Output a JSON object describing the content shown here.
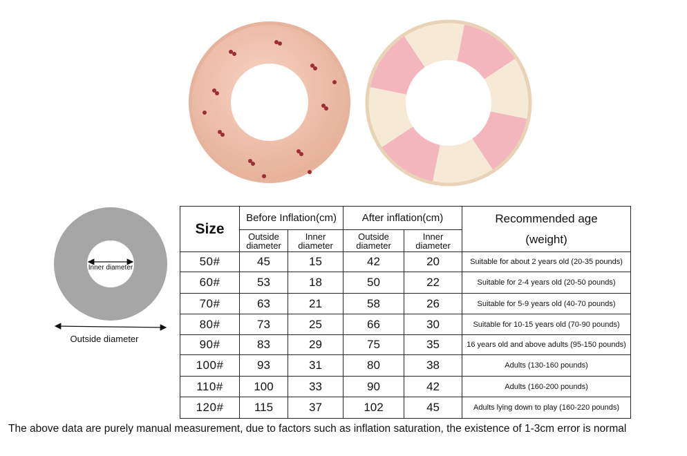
{
  "colors": {
    "peach_ring": "#efc0a9",
    "cherry": "#9c2f36",
    "pink_stripe": "#f4b6bd",
    "cream_stripe": "#f6ead6",
    "diagram_ring": "#a6a6a6"
  },
  "diagram": {
    "inner_label": "Inner diameter",
    "outside_label": "Outside diameter"
  },
  "table": {
    "size_header": "Size",
    "before_header": "Before Inflation(cm)",
    "after_header": "After inflation(cm)",
    "age_header_line1": "Recommended age",
    "age_header_line2": "(weight)",
    "outside_sub": "Outside diameter",
    "inner_sub": "Inner diameter",
    "rows": [
      {
        "size": "50#",
        "before_outside": "45",
        "before_inner": "15",
        "after_outside": "42",
        "after_inner": "20",
        "age": "Suitable for about 2 years old (20-35 pounds)"
      },
      {
        "size": "60#",
        "before_outside": "53",
        "before_inner": "18",
        "after_outside": "50",
        "after_inner": "22",
        "age": "Suitable for 2-4 years old (20-50 pounds)"
      },
      {
        "size": "70#",
        "before_outside": "63",
        "before_inner": "21",
        "after_outside": "58",
        "after_inner": "26",
        "age": "Suitable for 5-9 years old (40-70 pounds)"
      },
      {
        "size": "80#",
        "before_outside": "73",
        "before_inner": "25",
        "after_outside": "66",
        "after_inner": "30",
        "age": "Suitable for 10-15 years old (70-90 pounds)"
      },
      {
        "size": "90#",
        "before_outside": "83",
        "before_inner": "29",
        "after_outside": "75",
        "after_inner": "35",
        "age": "16 years old and above adults (95-150 pounds)"
      },
      {
        "size": "100#",
        "before_outside": "93",
        "before_inner": "31",
        "after_outside": "80",
        "after_inner": "38",
        "age": "Adults (130-160 pounds)"
      },
      {
        "size": "110#",
        "before_outside": "100",
        "before_inner": "33",
        "after_outside": "90",
        "after_inner": "42",
        "age": "Adults (160-200 pounds)"
      },
      {
        "size": "120#",
        "before_outside": "115",
        "before_inner": "37",
        "after_outside": "102",
        "after_inner": "45",
        "age": "Adults lying down to play (160-220 pounds)"
      }
    ]
  },
  "footnote": "The above data are purely manual measurement, due to factors such as inflation saturation, the existence of 1-3cm error is normal"
}
